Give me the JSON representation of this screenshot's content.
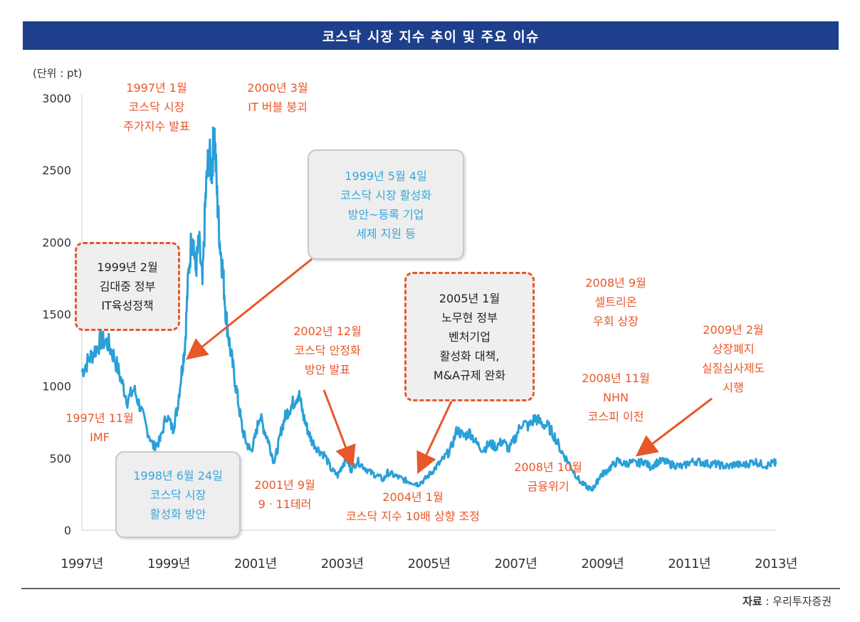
{
  "title": "코스닥 시장 지수 추이 및 주요 이슈",
  "unit": "(단위 : pt)",
  "source_label": "자료",
  "source_value": "우리투자증권",
  "colors": {
    "line": "#2a9fd8",
    "orange": "#e8572a",
    "blue": "#36a6dc",
    "title_bg": "#1d3f8c"
  },
  "chart_data": {
    "type": "line",
    "title": "코스닥 시장 지수 추이 및 주요 이슈",
    "ylabel": "(단위 : pt)",
    "ylim": [
      0,
      3000
    ],
    "yticks": [
      "3000",
      "2500",
      "2000",
      "1500",
      "1000",
      "500",
      "0"
    ],
    "ytick_values": [
      3000,
      2500,
      2000,
      1500,
      1000,
      500,
      0
    ],
    "xlim": [
      1997.0,
      2013.0
    ],
    "xticks": [
      "1997년",
      "1999년",
      "2001년",
      "2003년",
      "2005년",
      "2007년",
      "2009년",
      "2011년",
      "2013년"
    ],
    "xtick_values": [
      1997,
      1999,
      2001,
      2003,
      2005,
      2007,
      2009,
      2011,
      2013
    ],
    "series": [
      {
        "name": "코스닥 지수",
        "x": [
          1997.0,
          1997.15,
          1997.3,
          1997.45,
          1997.6,
          1997.75,
          1997.9,
          1998.05,
          1998.2,
          1998.35,
          1998.5,
          1998.65,
          1998.8,
          1998.95,
          1999.1,
          1999.2,
          1999.3,
          1999.38,
          1999.45,
          1999.55,
          1999.62,
          1999.7,
          1999.78,
          1999.85,
          1999.92,
          2000.0,
          2000.05,
          2000.12,
          2000.18,
          2000.25,
          2000.32,
          2000.4,
          2000.5,
          2000.6,
          2000.7,
          2000.8,
          2000.9,
          2001.0,
          2001.1,
          2001.2,
          2001.3,
          2001.42,
          2001.5,
          2001.6,
          2001.7,
          2001.8,
          2001.9,
          2002.0,
          2002.1,
          2002.2,
          2002.3,
          2002.45,
          2002.6,
          2002.75,
          2002.9,
          2003.0,
          2003.1,
          2003.2,
          2003.35,
          2003.5,
          2003.65,
          2003.8,
          2003.95,
          2004.05,
          2004.2,
          2004.35,
          2004.5,
          2004.65,
          2004.75,
          2004.9,
          2005.05,
          2005.2,
          2005.35,
          2005.5,
          2005.65,
          2005.8,
          2005.95,
          2006.1,
          2006.25,
          2006.4,
          2006.55,
          2006.7,
          2006.85,
          2007.0,
          2007.15,
          2007.3,
          2007.45,
          2007.6,
          2007.75,
          2007.9,
          2008.05,
          2008.2,
          2008.35,
          2008.5,
          2008.65,
          2008.75,
          2008.85,
          2008.95,
          2009.05,
          2009.2,
          2009.35,
          2009.5,
          2009.65,
          2009.8,
          2009.95,
          2010.1,
          2010.25,
          2010.4,
          2010.55,
          2010.7,
          2010.85,
          2011.0,
          2011.15,
          2011.3,
          2011.45,
          2011.6,
          2011.75,
          2011.9,
          2012.05,
          2012.2,
          2012.35,
          2012.5,
          2012.65,
          2012.8,
          2012.95,
          2013.0
        ],
        "values": [
          1100,
          1180,
          1250,
          1320,
          1300,
          1200,
          1050,
          900,
          980,
          850,
          700,
          580,
          620,
          800,
          700,
          850,
          1100,
          1300,
          1750,
          2100,
          1800,
          2000,
          1700,
          2300,
          2600,
          2500,
          2800,
          2300,
          2000,
          1800,
          1500,
          1300,
          1100,
          900,
          700,
          600,
          550,
          650,
          800,
          700,
          620,
          480,
          550,
          700,
          800,
          850,
          900,
          950,
          800,
          700,
          620,
          560,
          520,
          420,
          380,
          450,
          500,
          420,
          480,
          440,
          400,
          380,
          350,
          400,
          380,
          360,
          340,
          330,
          320,
          350,
          400,
          450,
          500,
          560,
          700,
          650,
          680,
          600,
          560,
          600,
          580,
          620,
          560,
          650,
          750,
          720,
          780,
          740,
          720,
          650,
          550,
          480,
          400,
          330,
          300,
          280,
          320,
          380,
          400,
          440,
          480,
          460,
          470,
          460,
          480,
          440,
          470,
          480,
          460,
          450,
          440,
          470,
          480,
          470,
          460,
          460,
          450,
          440,
          460,
          450,
          460,
          480,
          460,
          450,
          470,
          460
        ]
      }
    ],
    "annotations": [
      {
        "lines": [
          "1997년 1월",
          "코스닥 시장",
          "주가지수 발표"
        ]
      },
      {
        "lines": [
          "2000년 3월",
          "IT 버블 붕괴"
        ]
      },
      {
        "lines": [
          "1999년 5월 4일",
          "코스닥 시장 활성화",
          "방안~등록 기업",
          "세제 지원 등"
        ]
      },
      {
        "lines": [
          "1999년 2월",
          "김대중 정부",
          "IT육성정책"
        ]
      },
      {
        "lines": [
          "2005년 1월",
          "노무현 정부",
          "벤처기업",
          "활성화 대책,",
          "M&A규제 완화"
        ]
      },
      {
        "lines": [
          "2008년 9월",
          "셀트리온",
          "우회 상장"
        ]
      },
      {
        "lines": [
          "2002년 12월",
          "코스닥 안정화",
          "방안 발표"
        ]
      },
      {
        "lines": [
          "2009년 2월",
          "상장폐지",
          "실질심사제도",
          "시행"
        ]
      },
      {
        "lines": [
          "2008년 11월",
          "NHN",
          "코스피 이전"
        ]
      },
      {
        "lines": [
          "1997년 11월",
          "IMF"
        ]
      },
      {
        "lines": [
          "1998년 6월 24일",
          "코스닥 시장",
          "활성화 방안"
        ]
      },
      {
        "lines": [
          "2001년 9월",
          "9ㆍ11테러"
        ]
      },
      {
        "lines": [
          "2004년 1월",
          "코스닥 지수 10배 상향 조정"
        ]
      },
      {
        "lines": [
          "2008년 10월",
          "금융위기"
        ]
      }
    ]
  }
}
